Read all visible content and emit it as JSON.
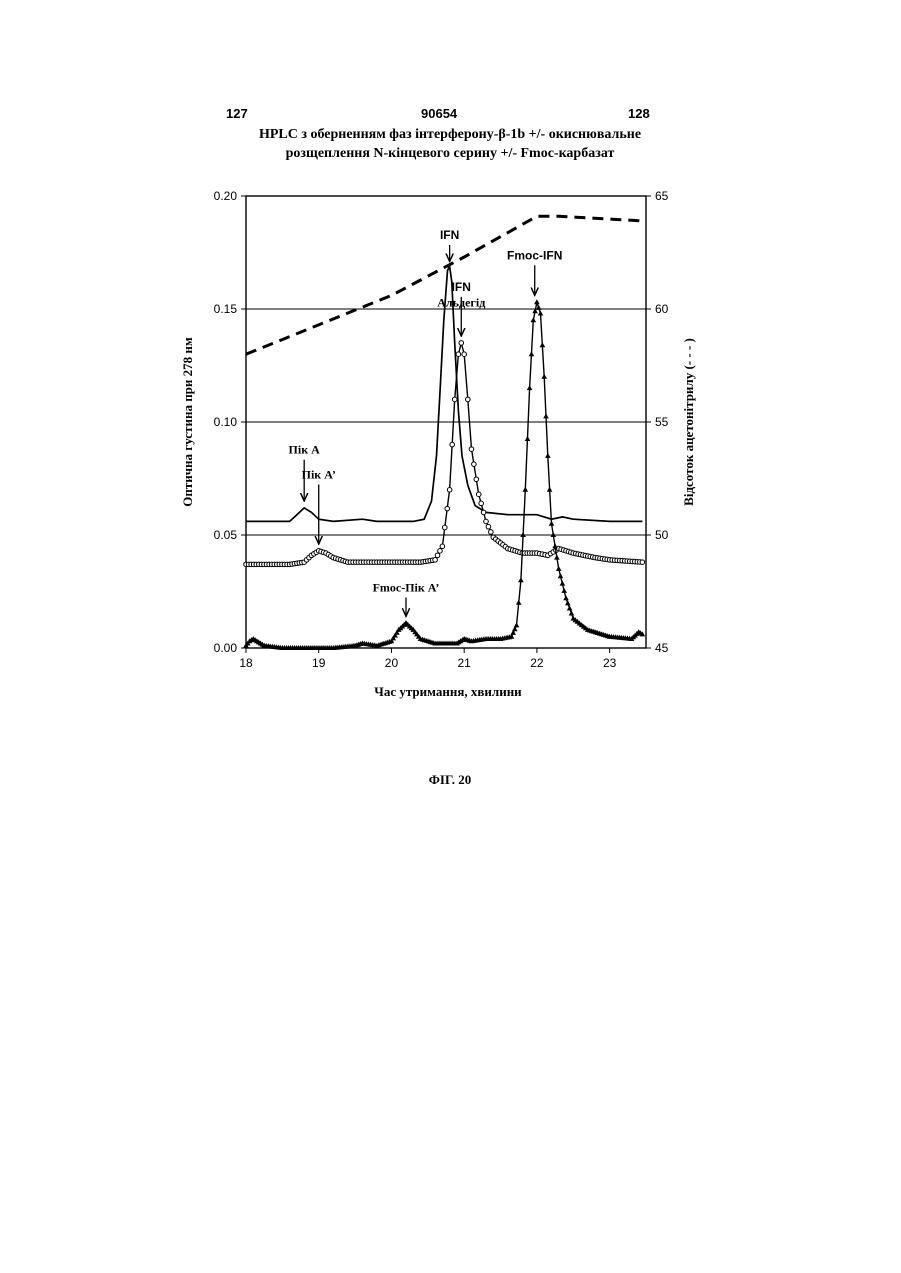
{
  "page": {
    "left_number": "127",
    "center_number": "90654",
    "right_number": "128"
  },
  "title_line1": "HPLC з оберненням фаз інтерферону-β-1b +/- окиснювальне",
  "title_line2": "розщеплення N-кінцевого серину +/- Fmoc-карбазат",
  "figure_caption": "ФІГ. 20",
  "chart_data": {
    "type": "line",
    "xlabel": "Час утримання, хвилини",
    "ylabel": "Оптична густина при 278 нм",
    "y2label": "Відсоток ацетонітрилу (- - - )",
    "xlim": [
      18,
      23.5
    ],
    "ylim": [
      0,
      0.2
    ],
    "y2lim": [
      45,
      65
    ],
    "x_ticks": [
      "18",
      "19",
      "20",
      "21",
      "22",
      "23"
    ],
    "y_ticks": [
      "0.00",
      "0.05",
      "0.10",
      "0.15",
      "0.20"
    ],
    "y2_ticks": [
      "45",
      "50",
      "55",
      "60",
      "65"
    ],
    "grid": "horizontal",
    "series": [
      {
        "key": "thin",
        "style": "solid-thin",
        "points": [
          [
            18,
            0.056
          ],
          [
            18.6,
            0.056
          ],
          [
            18.7,
            0.059
          ],
          [
            18.8,
            0.062
          ],
          [
            18.9,
            0.06
          ],
          [
            19.0,
            0.057
          ],
          [
            19.2,
            0.056
          ],
          [
            19.6,
            0.057
          ],
          [
            19.8,
            0.056
          ],
          [
            20.3,
            0.056
          ],
          [
            20.45,
            0.057
          ],
          [
            20.55,
            0.065
          ],
          [
            20.62,
            0.085
          ],
          [
            20.67,
            0.115
          ],
          [
            20.72,
            0.145
          ],
          [
            20.77,
            0.167
          ],
          [
            20.8,
            0.169
          ],
          [
            20.83,
            0.162
          ],
          [
            20.87,
            0.135
          ],
          [
            20.92,
            0.105
          ],
          [
            20.97,
            0.085
          ],
          [
            21.05,
            0.072
          ],
          [
            21.15,
            0.063
          ],
          [
            21.3,
            0.06
          ],
          [
            21.6,
            0.059
          ],
          [
            22.0,
            0.059
          ],
          [
            22.2,
            0.057
          ],
          [
            22.35,
            0.058
          ],
          [
            22.5,
            0.057
          ],
          [
            23.0,
            0.056
          ],
          [
            23.45,
            0.056
          ]
        ]
      },
      {
        "key": "circles",
        "style": "circle-markers",
        "points": [
          [
            18,
            0.037
          ],
          [
            18.6,
            0.037
          ],
          [
            18.8,
            0.038
          ],
          [
            18.9,
            0.041
          ],
          [
            19.0,
            0.043
          ],
          [
            19.1,
            0.042
          ],
          [
            19.2,
            0.04
          ],
          [
            19.4,
            0.038
          ],
          [
            19.8,
            0.038
          ],
          [
            20.4,
            0.038
          ],
          [
            20.6,
            0.039
          ],
          [
            20.7,
            0.045
          ],
          [
            20.8,
            0.07
          ],
          [
            20.87,
            0.11
          ],
          [
            20.92,
            0.13
          ],
          [
            20.96,
            0.135
          ],
          [
            21.0,
            0.13
          ],
          [
            21.05,
            0.11
          ],
          [
            21.1,
            0.088
          ],
          [
            21.2,
            0.068
          ],
          [
            21.3,
            0.056
          ],
          [
            21.4,
            0.049
          ],
          [
            21.6,
            0.044
          ],
          [
            21.8,
            0.042
          ],
          [
            22.0,
            0.042
          ],
          [
            22.15,
            0.041
          ],
          [
            22.3,
            0.044
          ],
          [
            22.5,
            0.042
          ],
          [
            22.8,
            0.04
          ],
          [
            23.0,
            0.039
          ],
          [
            23.45,
            0.038
          ]
        ]
      },
      {
        "key": "triangles",
        "style": "triangle-markers",
        "points": [
          [
            18,
            0.001
          ],
          [
            18.05,
            0.003
          ],
          [
            18.1,
            0.004
          ],
          [
            18.15,
            0.003
          ],
          [
            18.25,
            0.001
          ],
          [
            18.5,
            0.0
          ],
          [
            19.2,
            0.0
          ],
          [
            19.5,
            0.001
          ],
          [
            19.6,
            0.002
          ],
          [
            19.8,
            0.001
          ],
          [
            20.0,
            0.003
          ],
          [
            20.1,
            0.008
          ],
          [
            20.2,
            0.011
          ],
          [
            20.3,
            0.008
          ],
          [
            20.4,
            0.004
          ],
          [
            20.6,
            0.002
          ],
          [
            20.9,
            0.002
          ],
          [
            21.0,
            0.004
          ],
          [
            21.1,
            0.003
          ],
          [
            21.3,
            0.004
          ],
          [
            21.5,
            0.004
          ],
          [
            21.65,
            0.005
          ],
          [
            21.72,
            0.01
          ],
          [
            21.78,
            0.03
          ],
          [
            21.84,
            0.07
          ],
          [
            21.9,
            0.115
          ],
          [
            21.95,
            0.145
          ],
          [
            22.0,
            0.153
          ],
          [
            22.05,
            0.148
          ],
          [
            22.1,
            0.12
          ],
          [
            22.15,
            0.085
          ],
          [
            22.2,
            0.055
          ],
          [
            22.3,
            0.035
          ],
          [
            22.4,
            0.022
          ],
          [
            22.5,
            0.013
          ],
          [
            22.7,
            0.008
          ],
          [
            23.0,
            0.005
          ],
          [
            23.3,
            0.004
          ],
          [
            23.4,
            0.007
          ],
          [
            23.45,
            0.006
          ]
        ]
      },
      {
        "key": "acetonitrile",
        "style": "dashed",
        "axis": "y2",
        "points": [
          [
            18,
            58.0
          ],
          [
            20.0,
            60.6
          ],
          [
            21.0,
            62.3
          ],
          [
            22.0,
            64.1
          ],
          [
            22.3,
            64.1
          ],
          [
            23.45,
            63.9
          ]
        ]
      }
    ],
    "annotations": [
      {
        "text": "IFN",
        "style": "sans",
        "x": 20.8,
        "y": 0.181,
        "arrow_to": 0.171
      },
      {
        "text": "IFN",
        "style": "sans",
        "x": 20.96,
        "y": 0.158,
        "arrow_to": 0.138
      },
      {
        "text": "Альдегід",
        "style": "serif",
        "x": 20.96,
        "y": 0.151
      },
      {
        "text": "Fmoc-IFN",
        "style": "sans",
        "x": 21.97,
        "y": 0.172,
        "arrow_to": 0.156
      },
      {
        "text": "Пік А",
        "style": "serif",
        "x": 18.8,
        "y": 0.086,
        "arrow_to": 0.065
      },
      {
        "text": "Пік А’",
        "style": "serif",
        "x": 19.0,
        "y": 0.075,
        "arrow_to": 0.046
      },
      {
        "text": "Fmoc-Пік А’",
        "style": "serif",
        "x": 20.2,
        "y": 0.025,
        "arrow_to": 0.014
      }
    ]
  }
}
